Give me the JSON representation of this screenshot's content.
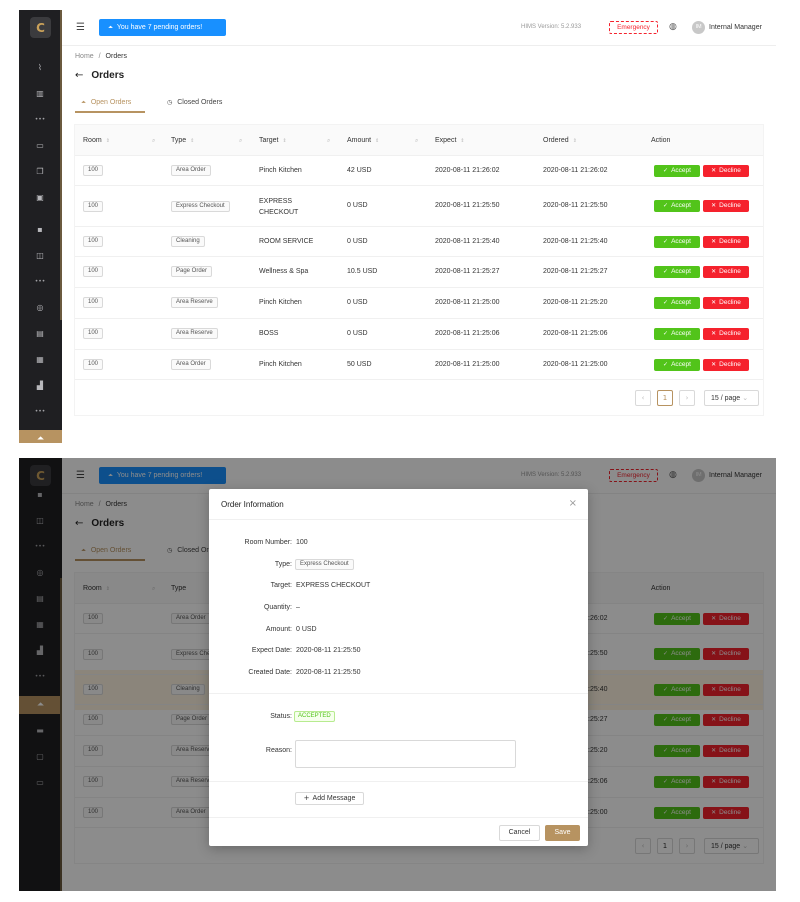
{
  "topbar": {
    "pending_label": "You have 7 pending orders!",
    "version": "HIMS Version: 5.2.933",
    "emergency": "Emergency",
    "avatar_initials": "IM",
    "user": "Internal Manager"
  },
  "breadcrumb": {
    "home": "Home",
    "sep": "/",
    "current": "Orders"
  },
  "page_title": "Orders",
  "tabs": [
    {
      "label": "Open Orders"
    },
    {
      "label": "Closed Orders"
    }
  ],
  "table": {
    "columns": [
      "Room",
      "Type",
      "Target",
      "Amount",
      "Expect",
      "Ordered",
      "Action"
    ],
    "rows": [
      {
        "room": "100",
        "type": "Area Order",
        "target": "Pinch Kitchen",
        "amount": "42 USD",
        "expect": "2020-08-11 21:26:02",
        "ordered": "2020-08-11 21:26:02"
      },
      {
        "room": "100",
        "type": "Express Checkout",
        "target": "EXPRESS CHECKOUT",
        "amount": "0 USD",
        "expect": "2020-08-11 21:25:50",
        "ordered": "2020-08-11 21:25:50"
      },
      {
        "room": "100",
        "type": "Cleaning",
        "target": "ROOM SERVICE",
        "amount": "0 USD",
        "expect": "2020-08-11 21:25:40",
        "ordered": "2020-08-11 21:25:40"
      },
      {
        "room": "100",
        "type": "Page Order",
        "target": "Wellness & Spa",
        "amount": "10.5 USD",
        "expect": "2020-08-11 21:25:27",
        "ordered": "2020-08-11 21:25:27"
      },
      {
        "room": "100",
        "type": "Area Reserve",
        "target": "Pinch Kitchen",
        "amount": "0 USD",
        "expect": "2020-08-11 21:25:00",
        "ordered": "2020-08-11 21:25:20"
      },
      {
        "room": "100",
        "type": "Area Reserve",
        "target": "BOSS",
        "amount": "0 USD",
        "expect": "2020-08-11 21:25:06",
        "ordered": "2020-08-11 21:25:06"
      },
      {
        "room": "100",
        "type": "Area Order",
        "target": "Pinch Kitchen",
        "amount": "50 USD",
        "expect": "2020-08-11 21:25:00",
        "ordered": "2020-08-11 21:25:00"
      }
    ],
    "accept_label": "Accept",
    "decline_label": "Decline"
  },
  "pagination": {
    "page": "1",
    "page_size": "15 / page"
  },
  "modal": {
    "title": "Order Information",
    "fields": {
      "room_number": {
        "label": "Room Number",
        "value": "100"
      },
      "type": {
        "label": "Type",
        "value": "Express Checkout"
      },
      "target": {
        "label": "Target",
        "value": "EXPRESS CHECKOUT"
      },
      "quantity": {
        "label": "Quantity",
        "value": "–"
      },
      "amount": {
        "label": "Amount",
        "value": "0 USD"
      },
      "expect_date": {
        "label": "Expect Date",
        "value": "2020-08-11 21:25:50"
      },
      "created_date": {
        "label": "Created Date",
        "value": "2020-08-11 21:25:50"
      },
      "status": {
        "label": "Status",
        "value": "ACCEPTED"
      },
      "reason": {
        "label": "Reason",
        "value": ""
      }
    },
    "add_message": "Add Message",
    "cancel": "Cancel",
    "save": "Save"
  },
  "colors": {
    "brand": "#b79361",
    "accept": "#52c41a",
    "decline": "#f5222d",
    "primary": "#1890ff",
    "sidebar": "#1f1f22"
  }
}
